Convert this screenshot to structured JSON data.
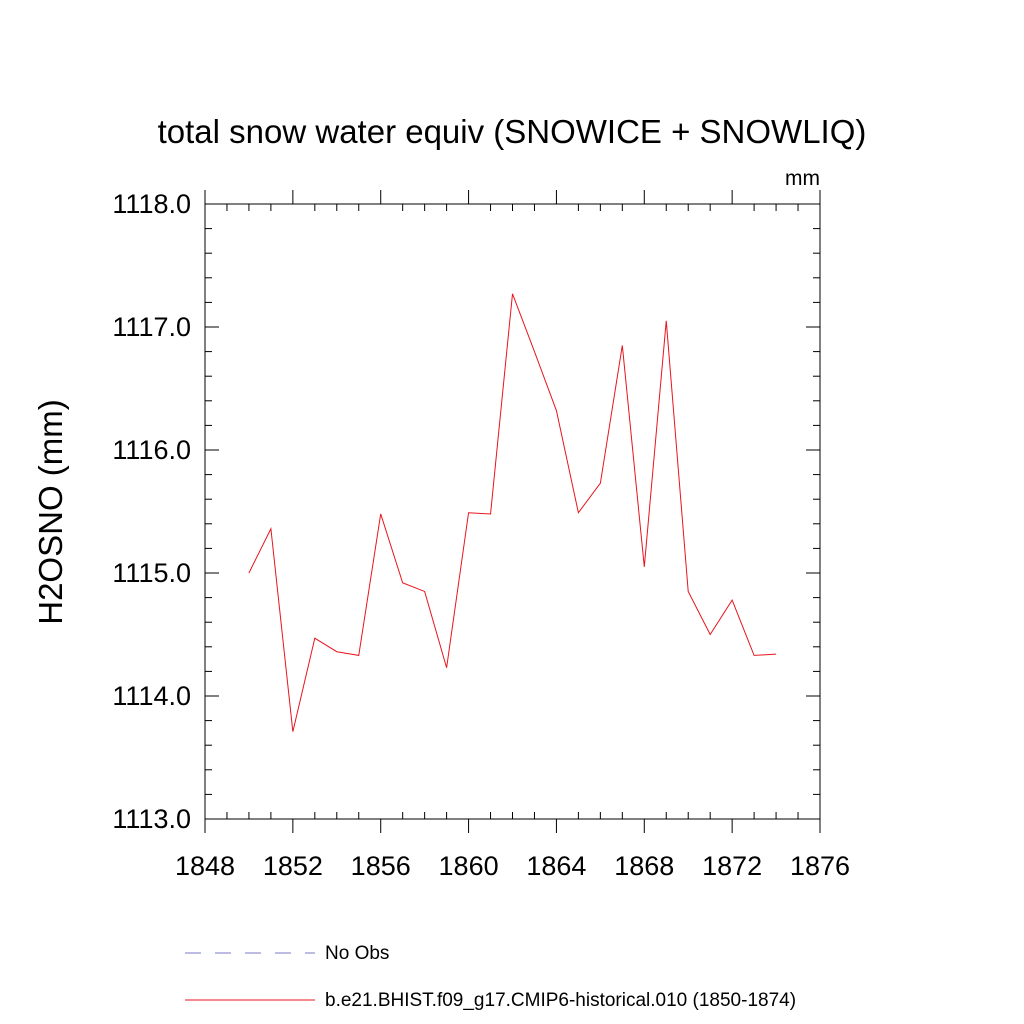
{
  "chart_data": {
    "type": "line",
    "title": "total snow water equiv (SNOWICE + SNOWLIQ)",
    "units_label": "mm",
    "ylabel": "H2OSNO  (mm)",
    "xlabel": "",
    "xlim": [
      1848,
      1876
    ],
    "ylim": [
      1113.0,
      1118.0
    ],
    "x_ticks": [
      1848,
      1852,
      1856,
      1860,
      1864,
      1868,
      1872,
      1876
    ],
    "x_tick_labels": [
      "1848",
      "1852",
      "1856",
      "1860",
      "1864",
      "1868",
      "1872",
      "1876"
    ],
    "y_ticks": [
      1113.0,
      1114.0,
      1115.0,
      1116.0,
      1117.0,
      1118.0
    ],
    "y_tick_labels": [
      "1113.0",
      "1114.0",
      "1115.0",
      "1116.0",
      "1117.0",
      "1118.0"
    ],
    "grid": false,
    "series": [
      {
        "name": "b.e21.BHIST.f09_g17.CMIP6-historical.010 (1850-1874)",
        "color": "#e8141c",
        "style": "solid",
        "x": [
          1850,
          1851,
          1852,
          1853,
          1854,
          1855,
          1856,
          1857,
          1858,
          1859,
          1860,
          1861,
          1862,
          1863,
          1864,
          1865,
          1866,
          1867,
          1868,
          1869,
          1870,
          1871,
          1872,
          1873,
          1874
        ],
        "y": [
          1115.0,
          1115.36,
          1113.71,
          1114.47,
          1114.36,
          1114.33,
          1115.48,
          1114.92,
          1114.85,
          1114.23,
          1115.49,
          1115.48,
          1117.27,
          1116.8,
          1116.32,
          1115.49,
          1115.73,
          1116.85,
          1115.05,
          1117.05,
          1114.85,
          1114.5,
          1114.78,
          1114.33,
          1114.34
        ]
      }
    ],
    "legend": {
      "placement": "bottom",
      "entries": [
        {
          "label": "No Obs",
          "color": "#7b78c6",
          "style": "dashed"
        },
        {
          "label": "b.e21.BHIST.f09_g17.CMIP6-historical.010 (1850-1874)",
          "color": "#e8141c",
          "style": "solid"
        }
      ]
    }
  }
}
